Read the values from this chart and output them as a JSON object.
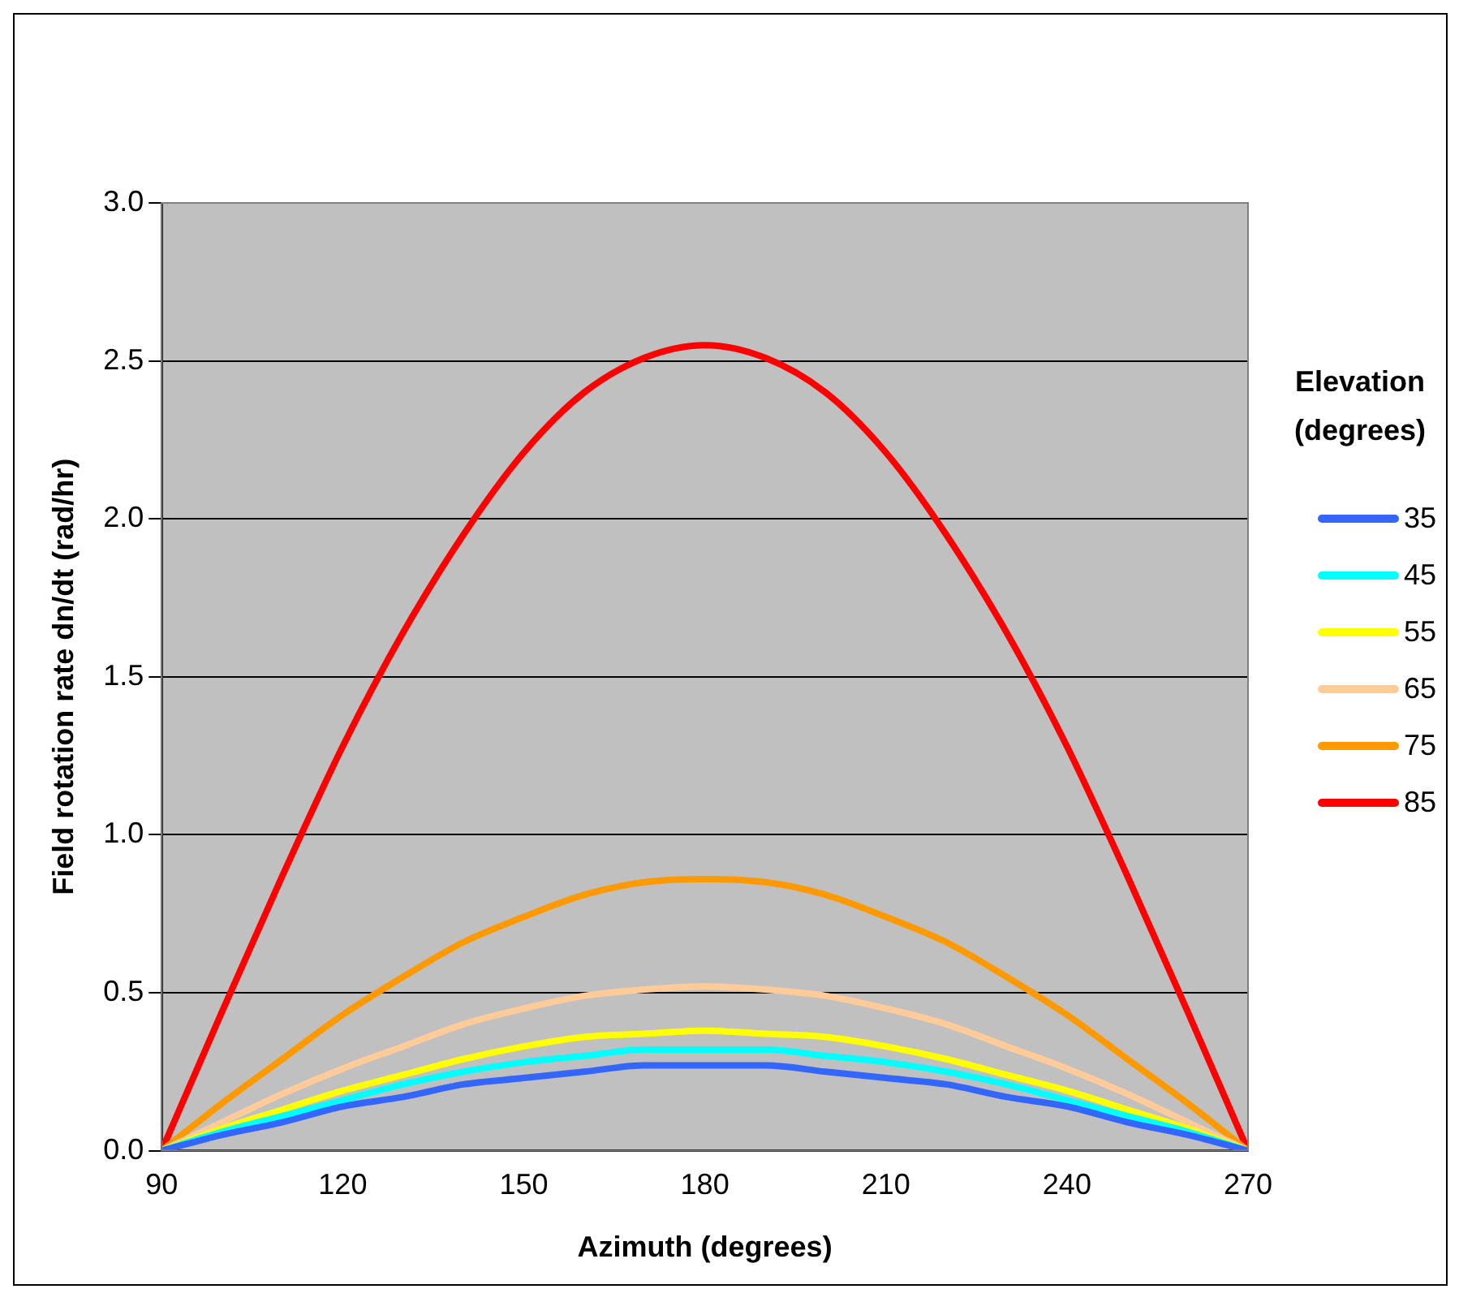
{
  "chart_data": {
    "type": "line",
    "xlabel": "Azimuth (degrees)",
    "ylabel": "Field rotation rate dn/dt (rad/hr)",
    "legend_title": "Elevation (degrees)",
    "x": [
      90,
      100,
      110,
      120,
      130,
      140,
      150,
      160,
      170,
      180,
      190,
      200,
      210,
      220,
      230,
      240,
      250,
      260,
      270
    ],
    "series": [
      {
        "name": "35",
        "color": "#3366ff",
        "values": [
          0,
          0.05,
          0.09,
          0.14,
          0.17,
          0.21,
          0.23,
          0.25,
          0.27,
          0.27,
          0.27,
          0.25,
          0.23,
          0.21,
          0.17,
          0.14,
          0.09,
          0.05,
          0
        ]
      },
      {
        "name": "45",
        "color": "#00ffff",
        "values": [
          0,
          0.06,
          0.11,
          0.16,
          0.21,
          0.25,
          0.28,
          0.3,
          0.32,
          0.32,
          0.32,
          0.3,
          0.28,
          0.25,
          0.21,
          0.16,
          0.11,
          0.06,
          0
        ]
      },
      {
        "name": "55",
        "color": "#ffff00",
        "values": [
          0,
          0.07,
          0.13,
          0.19,
          0.24,
          0.29,
          0.33,
          0.36,
          0.37,
          0.38,
          0.37,
          0.36,
          0.33,
          0.29,
          0.24,
          0.19,
          0.13,
          0.07,
          0
        ]
      },
      {
        "name": "65",
        "color": "#ffcc99",
        "values": [
          0,
          0.09,
          0.18,
          0.26,
          0.33,
          0.4,
          0.45,
          0.49,
          0.51,
          0.52,
          0.51,
          0.49,
          0.45,
          0.4,
          0.33,
          0.26,
          0.18,
          0.09,
          0
        ]
      },
      {
        "name": "75",
        "color": "#ff9900",
        "values": [
          0,
          0.15,
          0.29,
          0.43,
          0.55,
          0.66,
          0.74,
          0.81,
          0.85,
          0.86,
          0.85,
          0.81,
          0.74,
          0.66,
          0.55,
          0.43,
          0.29,
          0.15,
          0
        ]
      },
      {
        "name": "85",
        "color": "#ff0000",
        "values": [
          0,
          0.44,
          0.87,
          1.28,
          1.64,
          1.95,
          2.21,
          2.4,
          2.51,
          2.55,
          2.51,
          2.4,
          2.21,
          1.95,
          1.64,
          1.28,
          0.87,
          0.44,
          0
        ]
      }
    ],
    "xlim": [
      90,
      270
    ],
    "xticks": [
      90,
      120,
      150,
      180,
      210,
      240,
      270
    ],
    "ylim": [
      0,
      3
    ],
    "yticks": [
      {
        "value": 0,
        "label": "0.0"
      },
      {
        "value": 0.5,
        "label": "0.5"
      },
      {
        "value": 1,
        "label": "1.0"
      },
      {
        "value": 1.5,
        "label": "1.5"
      },
      {
        "value": 2,
        "label": "2.0"
      },
      {
        "value": 2.5,
        "label": "2.5"
      },
      {
        "value": 3,
        "label": "3.0"
      }
    ],
    "grid": "y",
    "legend": "right",
    "marker": "none",
    "line_style": "solid"
  }
}
